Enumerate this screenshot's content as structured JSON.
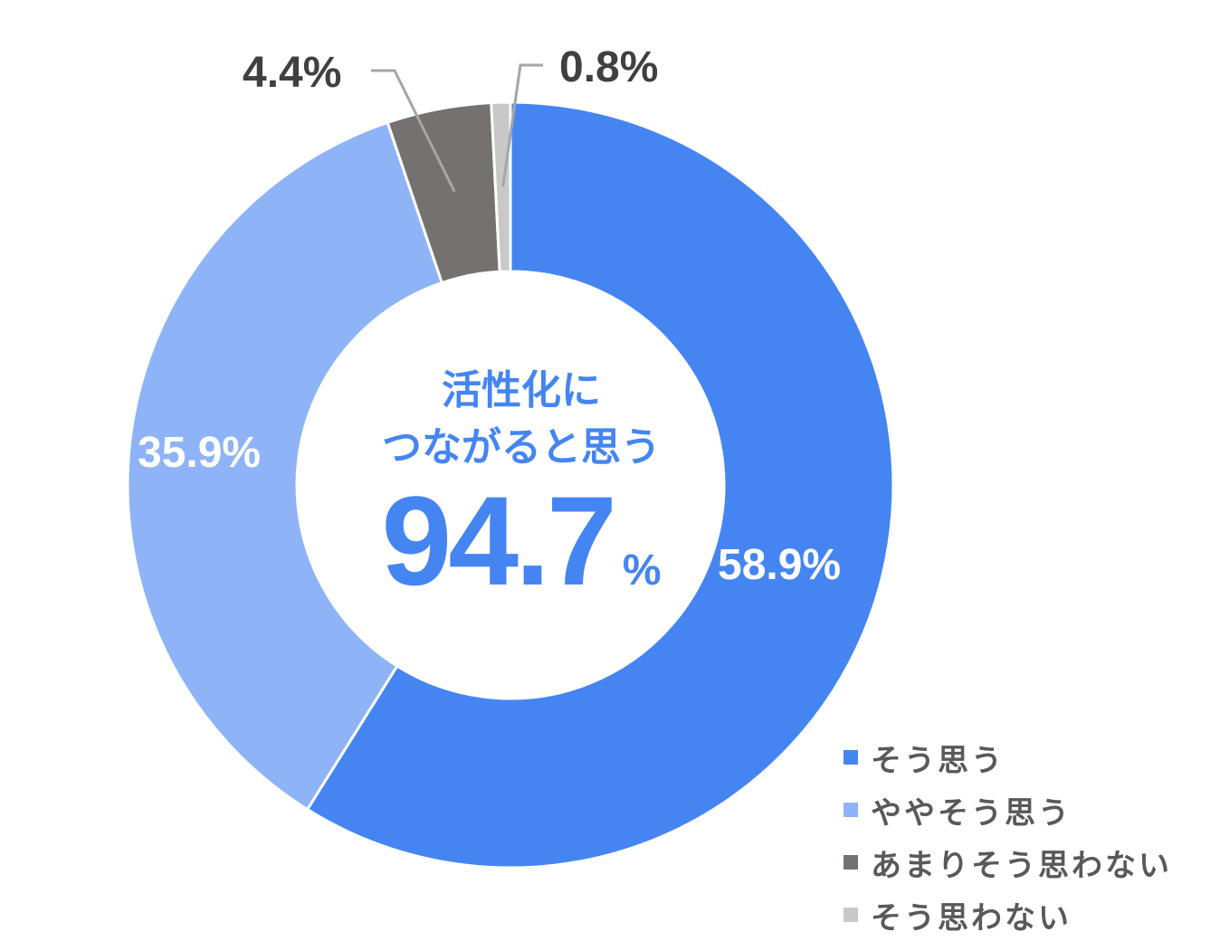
{
  "chart_data": {
    "type": "pie",
    "categories": [
      "そう思う",
      "ややそう思う",
      "あまりそう思わない",
      "そう思わない"
    ],
    "values": [
      58.9,
      35.9,
      4.4,
      0.8
    ],
    "value_labels": [
      "58.9%",
      "35.9%",
      "4.4%",
      "0.8%"
    ],
    "colors": [
      "#4585F2",
      "#8EB4F7",
      "#767171",
      "#C8C8C8"
    ],
    "label_colors": [
      "#FFFFFF",
      "#FFFFFF",
      "#404040",
      "#404040"
    ],
    "donut": true,
    "legend_position": "bottom-right",
    "center_text": {
      "line1": "活性化に",
      "line2": "つながると思う",
      "value": "94.7",
      "unit": "%"
    }
  }
}
